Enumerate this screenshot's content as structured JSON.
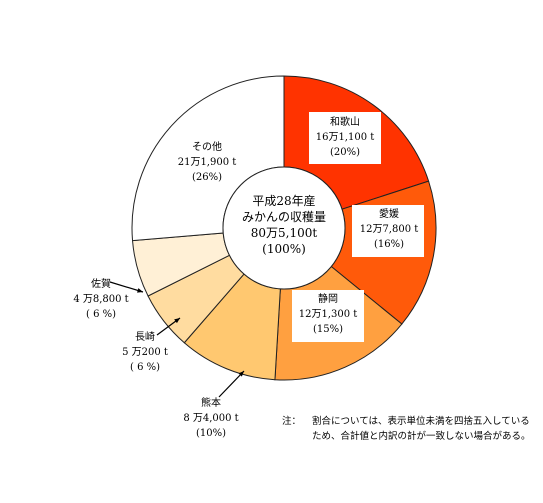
{
  "chart_data": {
    "type": "donut",
    "title": "",
    "center_label": {
      "line1": "平成28年産",
      "line2": "みかんの収穫量",
      "line3": "80万5,100t",
      "line4": "(100%)"
    },
    "total": 805100,
    "unit": "t",
    "slices": [
      {
        "name": "和歌山",
        "amount_text": "16万1,100 t",
        "percent_text": "(20%)",
        "value": 161100,
        "percent": 20,
        "color": "#ff3300",
        "label_box": true
      },
      {
        "name": "愛媛",
        "amount_text": "12万7,800 t",
        "percent_text": "(16%)",
        "value": 127800,
        "percent": 16,
        "color": "#ff5a0a",
        "label_box": true
      },
      {
        "name": "静岡",
        "amount_text": "12万1,300 t",
        "percent_text": "(15%)",
        "value": 121300,
        "percent": 15,
        "color": "#ffa040",
        "label_box": true
      },
      {
        "name": "熊本",
        "amount_text": "8 万4,000 t",
        "percent_text": "(10%)",
        "value": 84000,
        "percent": 10,
        "color": "#ffc870",
        "label_box": false
      },
      {
        "name": "長崎",
        "amount_text": "5 万200 t",
        "percent_text": "( 6 %)",
        "value": 50200,
        "percent": 6,
        "color": "#ffdca0",
        "label_box": false
      },
      {
        "name": "佐賀",
        "amount_text": "4 万8,800 t",
        "percent_text": "( 6 %)",
        "value": 48800,
        "percent": 6,
        "color": "#fff0d6",
        "label_box": false
      },
      {
        "name": "その他",
        "amount_text": "21万1,900 t",
        "percent_text": "(26%)",
        "value": 211900,
        "percent": 26,
        "color": "#ffffff",
        "label_box": false
      }
    ]
  },
  "note": {
    "mark": "注：",
    "text": "割合については、表示単位未満を四捨五入しているため、合計値と内訳の計が一致しない場合がある。"
  }
}
